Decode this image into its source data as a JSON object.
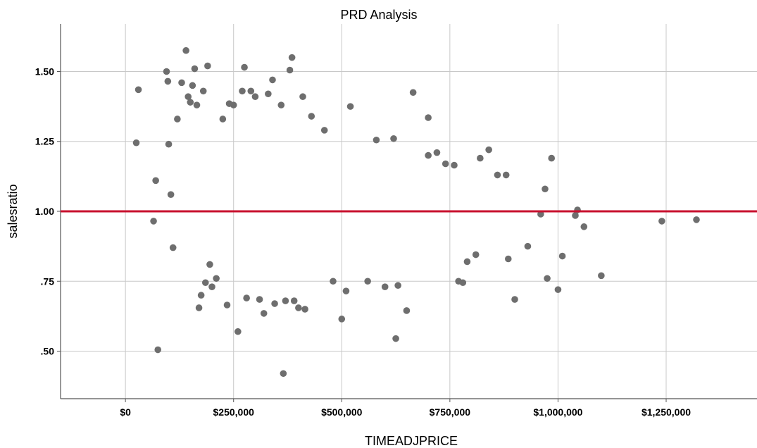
{
  "chart_data": {
    "type": "scatter",
    "title": "PRD Analysis",
    "xlabel": "TIMEADJPRICE",
    "ylabel": "salesratio",
    "xlim": [
      -150000,
      1460000
    ],
    "ylim": [
      0.33,
      1.67
    ],
    "x_ticks": [
      0,
      250000,
      500000,
      750000,
      1000000,
      1250000
    ],
    "x_tick_labels": [
      "$0",
      "$250,000",
      "$500,000",
      "$750,000",
      "$1,000,000",
      "$1,250,000"
    ],
    "y_ticks": [
      0.5,
      0.75,
      1.0,
      1.25,
      1.5
    ],
    "y_tick_labels": [
      ".50",
      ".75",
      "1.00",
      "1.25",
      "1.50"
    ],
    "grid": true,
    "reference_line": {
      "y": 1.0,
      "color": "#c8102e"
    },
    "point_color": "#6e6e6e",
    "series": [
      {
        "points": [
          [
            25000,
            1.245
          ],
          [
            30000,
            1.435
          ],
          [
            65000,
            0.965
          ],
          [
            70000,
            1.11
          ],
          [
            75000,
            0.505
          ],
          [
            95000,
            1.5
          ],
          [
            98000,
            1.465
          ],
          [
            100000,
            1.24
          ],
          [
            105000,
            1.06
          ],
          [
            110000,
            0.87
          ],
          [
            120000,
            1.33
          ],
          [
            130000,
            1.46
          ],
          [
            140000,
            1.575
          ],
          [
            145000,
            1.41
          ],
          [
            150000,
            1.39
          ],
          [
            155000,
            1.45
          ],
          [
            160000,
            1.51
          ],
          [
            165000,
            1.38
          ],
          [
            170000,
            0.655
          ],
          [
            175000,
            0.7
          ],
          [
            180000,
            1.43
          ],
          [
            185000,
            0.745
          ],
          [
            190000,
            1.52
          ],
          [
            195000,
            0.81
          ],
          [
            200000,
            0.73
          ],
          [
            210000,
            0.76
          ],
          [
            225000,
            1.33
          ],
          [
            235000,
            0.665
          ],
          [
            240000,
            1.385
          ],
          [
            250000,
            1.38
          ],
          [
            260000,
            0.57
          ],
          [
            270000,
            1.43
          ],
          [
            275000,
            1.515
          ],
          [
            280000,
            0.69
          ],
          [
            290000,
            1.43
          ],
          [
            300000,
            1.41
          ],
          [
            310000,
            0.685
          ],
          [
            320000,
            0.635
          ],
          [
            330000,
            1.42
          ],
          [
            340000,
            1.47
          ],
          [
            345000,
            0.67
          ],
          [
            360000,
            1.38
          ],
          [
            365000,
            0.42
          ],
          [
            370000,
            0.68
          ],
          [
            380000,
            1.505
          ],
          [
            385000,
            1.55
          ],
          [
            390000,
            0.68
          ],
          [
            400000,
            0.655
          ],
          [
            410000,
            1.41
          ],
          [
            415000,
            0.65
          ],
          [
            430000,
            1.34
          ],
          [
            460000,
            1.29
          ],
          [
            480000,
            0.75
          ],
          [
            500000,
            0.615
          ],
          [
            510000,
            0.715
          ],
          [
            520000,
            1.375
          ],
          [
            560000,
            0.75
          ],
          [
            580000,
            1.255
          ],
          [
            600000,
            0.73
          ],
          [
            620000,
            1.26
          ],
          [
            625000,
            0.545
          ],
          [
            630000,
            0.735
          ],
          [
            650000,
            0.645
          ],
          [
            665000,
            1.425
          ],
          [
            700000,
            1.335
          ],
          [
            700000,
            1.2
          ],
          [
            720000,
            1.21
          ],
          [
            740000,
            1.17
          ],
          [
            760000,
            1.165
          ],
          [
            770000,
            0.75
          ],
          [
            780000,
            0.745
          ],
          [
            790000,
            0.82
          ],
          [
            810000,
            0.845
          ],
          [
            820000,
            1.19
          ],
          [
            840000,
            1.22
          ],
          [
            860000,
            1.13
          ],
          [
            880000,
            1.13
          ],
          [
            885000,
            0.83
          ],
          [
            900000,
            0.685
          ],
          [
            930000,
            0.875
          ],
          [
            960000,
            0.99
          ],
          [
            970000,
            1.08
          ],
          [
            975000,
            0.76
          ],
          [
            985000,
            1.19
          ],
          [
            1000000,
            0.72
          ],
          [
            1010000,
            0.84
          ],
          [
            1040000,
            0.985
          ],
          [
            1045000,
            1.005
          ],
          [
            1060000,
            0.945
          ],
          [
            1100000,
            0.77
          ],
          [
            1240000,
            0.965
          ],
          [
            1320000,
            0.97
          ]
        ]
      }
    ]
  }
}
